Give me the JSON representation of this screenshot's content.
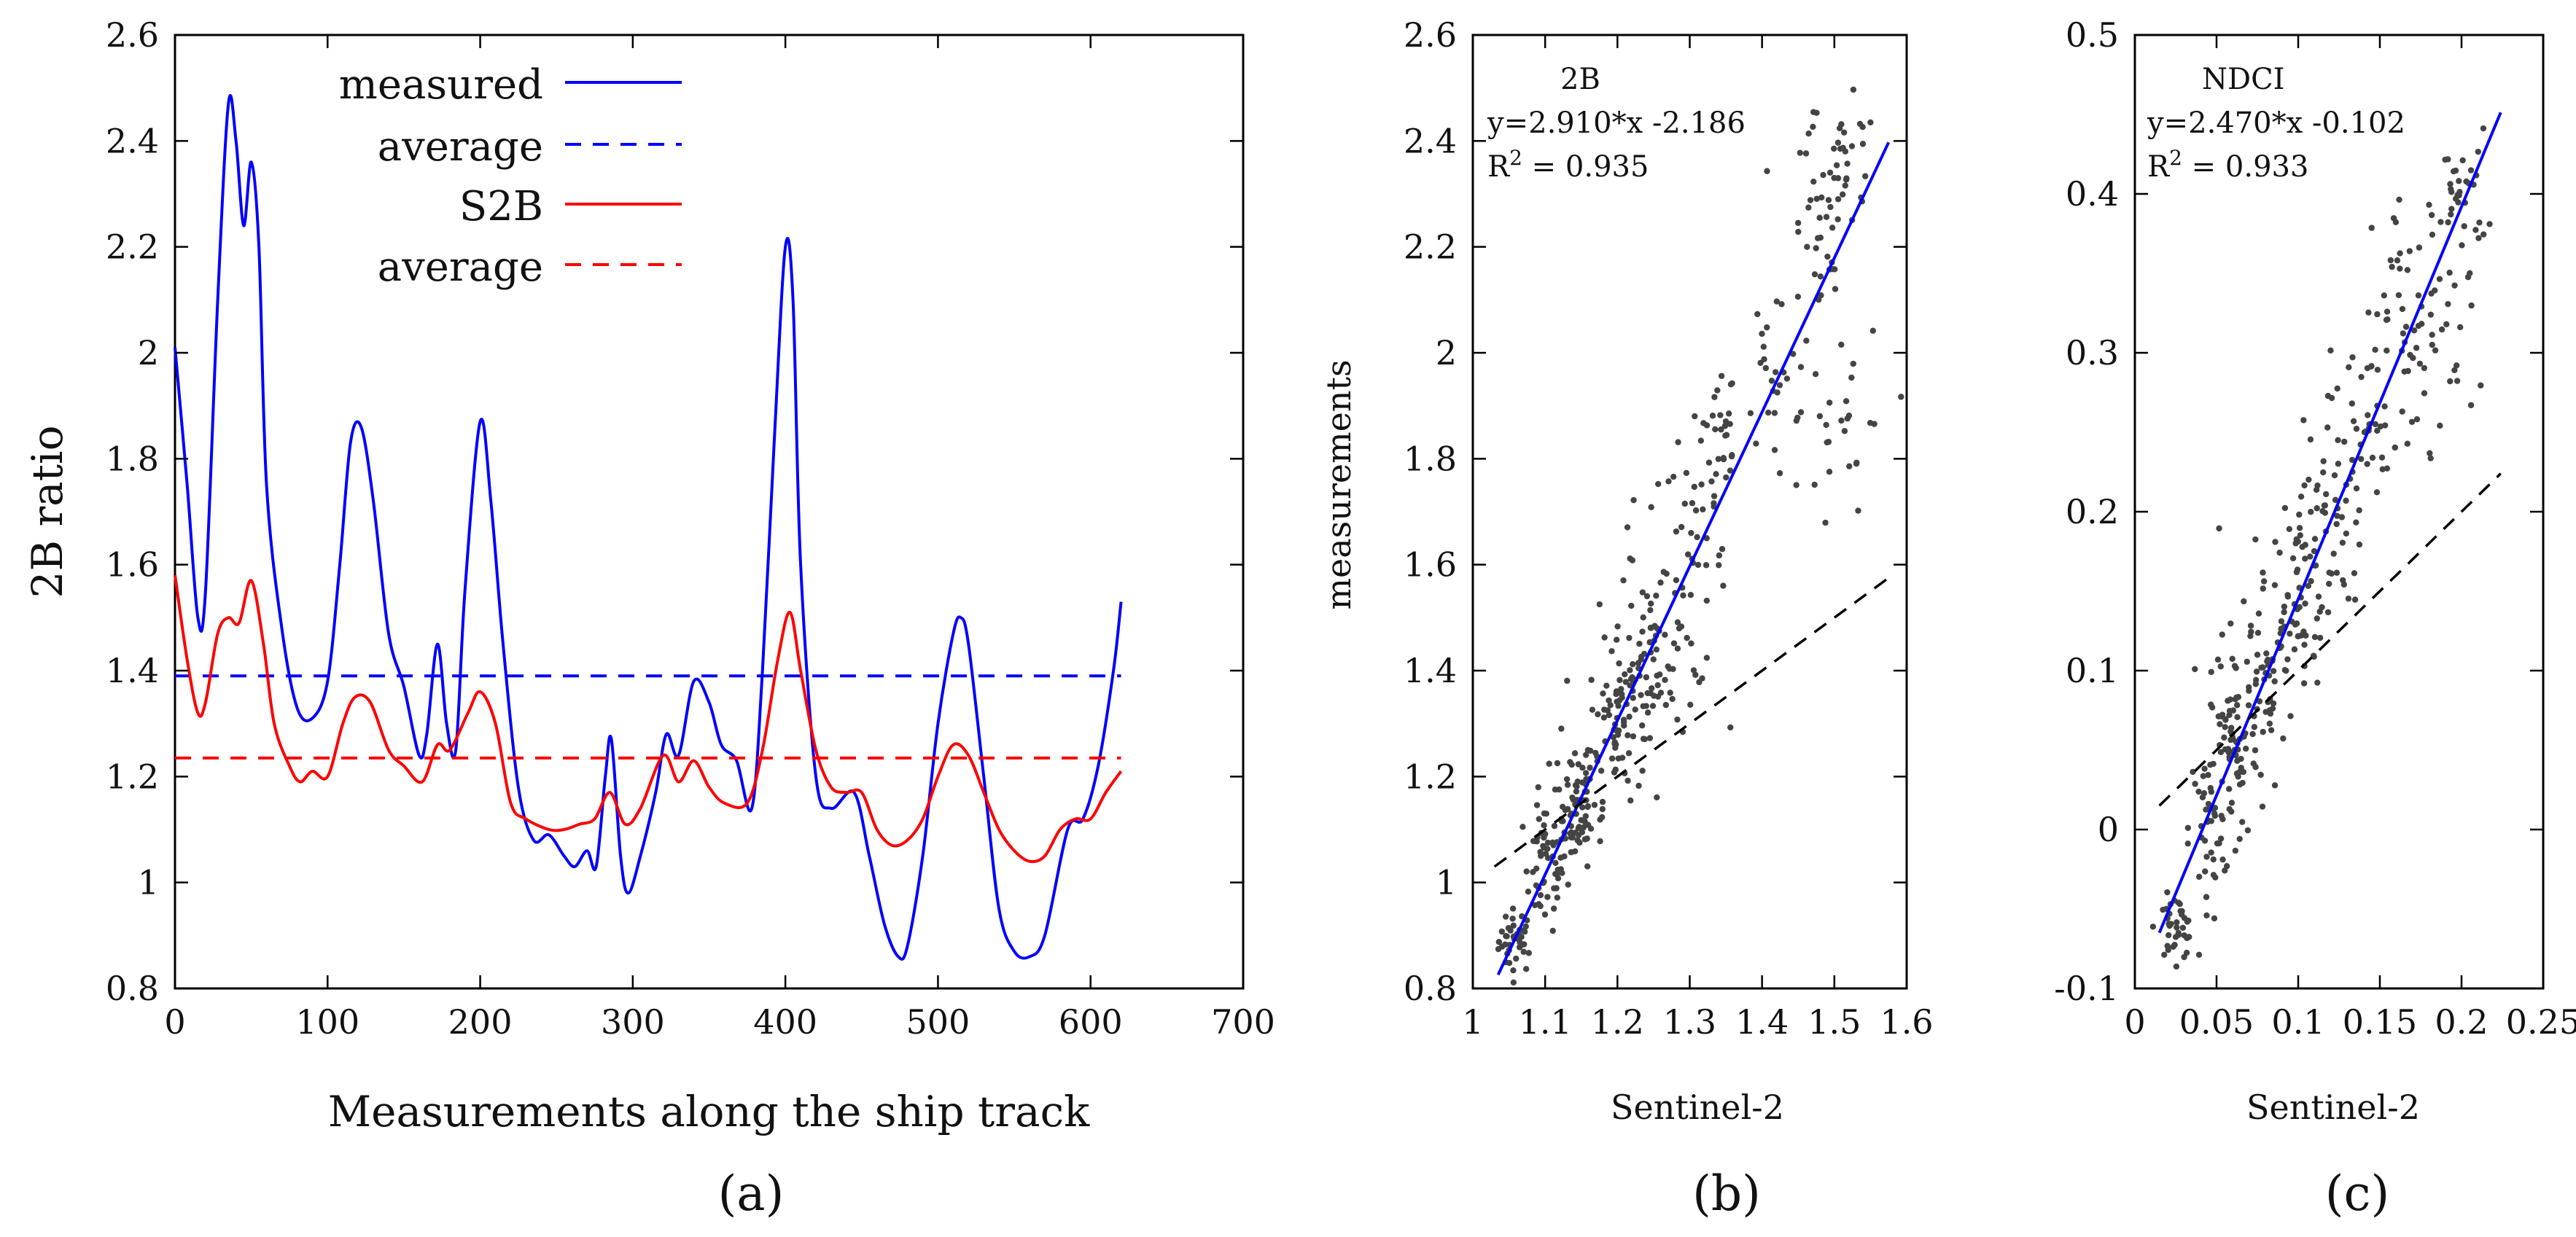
{
  "chart_data": [
    {
      "type": "line",
      "panel": "a",
      "panel_label": "(a)",
      "xlabel": "Measurements along the ship track",
      "ylabel": "2B ratio",
      "xlim": [
        0,
        700
      ],
      "ylim": [
        0.8,
        2.6
      ],
      "x_ticks": [
        0,
        100,
        200,
        300,
        400,
        500,
        600,
        700
      ],
      "y_ticks": [
        0.8,
        1,
        1.2,
        1.4,
        1.6,
        1.8,
        2,
        2.2,
        2.4,
        2.6
      ],
      "legend_position": "top-center",
      "series": [
        {
          "name": "measured",
          "color": "#0000ff",
          "style": "solid",
          "points": [
            [
              0,
              2.01
            ],
            [
              8,
              1.75
            ],
            [
              15,
              1.5
            ],
            [
              20,
              1.55
            ],
            [
              28,
              2.1
            ],
            [
              35,
              2.47
            ],
            [
              40,
              2.4
            ],
            [
              45,
              2.24
            ],
            [
              50,
              2.36
            ],
            [
              55,
              2.2
            ],
            [
              60,
              1.75
            ],
            [
              70,
              1.48
            ],
            [
              80,
              1.33
            ],
            [
              90,
              1.31
            ],
            [
              100,
              1.38
            ],
            [
              108,
              1.6
            ],
            [
              115,
              1.83
            ],
            [
              122,
              1.86
            ],
            [
              130,
              1.72
            ],
            [
              140,
              1.47
            ],
            [
              150,
              1.37
            ],
            [
              160,
              1.24
            ],
            [
              165,
              1.28
            ],
            [
              172,
              1.45
            ],
            [
              178,
              1.3
            ],
            [
              184,
              1.25
            ],
            [
              190,
              1.55
            ],
            [
              200,
              1.87
            ],
            [
              207,
              1.72
            ],
            [
              215,
              1.45
            ],
            [
              225,
              1.18
            ],
            [
              235,
              1.08
            ],
            [
              245,
              1.09
            ],
            [
              255,
              1.05
            ],
            [
              262,
              1.03
            ],
            [
              270,
              1.06
            ],
            [
              276,
              1.03
            ],
            [
              282,
              1.2
            ],
            [
              286,
              1.27
            ],
            [
              292,
              1.05
            ],
            [
              297,
              0.98
            ],
            [
              305,
              1.05
            ],
            [
              315,
              1.17
            ],
            [
              322,
              1.28
            ],
            [
              330,
              1.24
            ],
            [
              340,
              1.38
            ],
            [
              350,
              1.34
            ],
            [
              358,
              1.26
            ],
            [
              368,
              1.23
            ],
            [
              378,
              1.14
            ],
            [
              385,
              1.4
            ],
            [
              393,
              1.85
            ],
            [
              400,
              2.2
            ],
            [
              405,
              2.1
            ],
            [
              410,
              1.6
            ],
            [
              420,
              1.2
            ],
            [
              430,
              1.14
            ],
            [
              445,
              1.17
            ],
            [
              455,
              1.05
            ],
            [
              465,
              0.92
            ],
            [
              474,
              0.86
            ],
            [
              480,
              0.88
            ],
            [
              490,
              1.05
            ],
            [
              500,
              1.3
            ],
            [
              510,
              1.47
            ],
            [
              515,
              1.5
            ],
            [
              520,
              1.45
            ],
            [
              530,
              1.2
            ],
            [
              540,
              0.95
            ],
            [
              550,
              0.87
            ],
            [
              560,
              0.86
            ],
            [
              570,
              0.9
            ],
            [
              585,
              1.1
            ],
            [
              595,
              1.12
            ],
            [
              605,
              1.22
            ],
            [
              615,
              1.4
            ],
            [
              620,
              1.53
            ]
          ]
        },
        {
          "name": "average",
          "color": "#0000ff",
          "style": "dashed",
          "points": [
            [
              0,
              1.39
            ],
            [
              620,
              1.39
            ]
          ]
        },
        {
          "name": "S2B",
          "color": "#ff0000",
          "style": "solid",
          "points": [
            [
              0,
              1.58
            ],
            [
              8,
              1.42
            ],
            [
              15,
              1.32
            ],
            [
              20,
              1.34
            ],
            [
              28,
              1.47
            ],
            [
              35,
              1.5
            ],
            [
              42,
              1.49
            ],
            [
              50,
              1.57
            ],
            [
              58,
              1.45
            ],
            [
              65,
              1.3
            ],
            [
              75,
              1.22
            ],
            [
              82,
              1.19
            ],
            [
              90,
              1.21
            ],
            [
              100,
              1.2
            ],
            [
              110,
              1.3
            ],
            [
              118,
              1.35
            ],
            [
              128,
              1.34
            ],
            [
              140,
              1.25
            ],
            [
              150,
              1.22
            ],
            [
              162,
              1.19
            ],
            [
              172,
              1.26
            ],
            [
              180,
              1.25
            ],
            [
              192,
              1.32
            ],
            [
              200,
              1.36
            ],
            [
              210,
              1.3
            ],
            [
              220,
              1.15
            ],
            [
              230,
              1.12
            ],
            [
              245,
              1.1
            ],
            [
              255,
              1.1
            ],
            [
              265,
              1.11
            ],
            [
              275,
              1.12
            ],
            [
              285,
              1.17
            ],
            [
              295,
              1.11
            ],
            [
              305,
              1.14
            ],
            [
              320,
              1.24
            ],
            [
              330,
              1.19
            ],
            [
              340,
              1.23
            ],
            [
              350,
              1.18
            ],
            [
              360,
              1.15
            ],
            [
              375,
              1.15
            ],
            [
              385,
              1.25
            ],
            [
              395,
              1.42
            ],
            [
              403,
              1.51
            ],
            [
              410,
              1.4
            ],
            [
              420,
              1.25
            ],
            [
              430,
              1.18
            ],
            [
              440,
              1.17
            ],
            [
              450,
              1.17
            ],
            [
              460,
              1.1
            ],
            [
              470,
              1.07
            ],
            [
              480,
              1.08
            ],
            [
              490,
              1.12
            ],
            [
              500,
              1.2
            ],
            [
              510,
              1.26
            ],
            [
              520,
              1.24
            ],
            [
              530,
              1.17
            ],
            [
              540,
              1.1
            ],
            [
              550,
              1.06
            ],
            [
              560,
              1.04
            ],
            [
              570,
              1.05
            ],
            [
              580,
              1.1
            ],
            [
              590,
              1.12
            ],
            [
              600,
              1.12
            ],
            [
              610,
              1.17
            ],
            [
              620,
              1.21
            ]
          ]
        },
        {
          "name": "average",
          "color": "#ff0000",
          "style": "dashed",
          "points": [
            [
              0,
              1.235
            ],
            [
              620,
              1.235
            ]
          ]
        }
      ]
    },
    {
      "type": "scatter",
      "panel": "b",
      "panel_label": "(b)",
      "title": "2B",
      "annotation_eq": "y=2.910*x -2.186",
      "annotation_r2_prefix": "R",
      "annotation_r2_exp": "2",
      "annotation_r2_value": " = 0.935",
      "xlabel": "Sentinel-2",
      "ylabel": "measurements",
      "xlim": [
        1,
        1.6
      ],
      "ylim": [
        0.8,
        2.6
      ],
      "x_ticks": [
        1,
        1.1,
        1.2,
        1.3,
        1.4,
        1.5,
        1.6
      ],
      "y_ticks": [
        0.8,
        1,
        1.2,
        1.4,
        1.6,
        1.8,
        2,
        2.2,
        2.4,
        2.6
      ],
      "fit": {
        "slope": 2.91,
        "intercept": -2.186,
        "x_range": [
          1.035,
          1.575
        ],
        "color": "#0000ff"
      },
      "one_to_one": {
        "x_range": [
          1.03,
          1.575
        ],
        "color": "#000000",
        "style": "dashed"
      },
      "point_clusters": [
        {
          "cx": 1.06,
          "cy": 0.89,
          "sx": 0.012,
          "sy": 0.03,
          "n": 40
        },
        {
          "cx": 1.1,
          "cy": 1.03,
          "sx": 0.015,
          "sy": 0.06,
          "n": 55
        },
        {
          "cx": 1.14,
          "cy": 1.16,
          "sx": 0.015,
          "sy": 0.06,
          "n": 55
        },
        {
          "cx": 1.2,
          "cy": 1.3,
          "sx": 0.02,
          "sy": 0.07,
          "n": 70
        },
        {
          "cx": 1.25,
          "cy": 1.42,
          "sx": 0.02,
          "sy": 0.07,
          "n": 55
        },
        {
          "cx": 1.3,
          "cy": 1.6,
          "sx": 0.025,
          "sy": 0.12,
          "n": 45
        },
        {
          "cx": 1.34,
          "cy": 1.8,
          "sx": 0.015,
          "sy": 0.08,
          "n": 30
        },
        {
          "cx": 1.42,
          "cy": 1.95,
          "sx": 0.03,
          "sy": 0.12,
          "n": 30
        },
        {
          "cx": 1.48,
          "cy": 2.2,
          "sx": 0.02,
          "sy": 0.12,
          "n": 40
        },
        {
          "cx": 1.52,
          "cy": 2.35,
          "sx": 0.02,
          "sy": 0.06,
          "n": 25
        },
        {
          "cx": 1.52,
          "cy": 1.85,
          "sx": 0.03,
          "sy": 0.1,
          "n": 25
        },
        {
          "cx": 1.22,
          "cy": 1.55,
          "sx": 0.02,
          "sy": 0.12,
          "n": 20
        },
        {
          "cx": 1.15,
          "cy": 1.1,
          "sx": 0.02,
          "sy": 0.04,
          "n": 25
        }
      ]
    },
    {
      "type": "scatter",
      "panel": "c",
      "panel_label": "(c)",
      "title": "NDCI",
      "annotation_eq": "y=2.470*x -0.102",
      "annotation_r2_prefix": "R",
      "annotation_r2_exp": "2",
      "annotation_r2_value": " = 0.933",
      "xlabel": "Sentinel-2",
      "ylabel": "",
      "xlim": [
        0,
        0.25
      ],
      "ylim": [
        -0.1,
        0.5
      ],
      "x_ticks": [
        0,
        0.05,
        0.1,
        0.15,
        0.2,
        0.25
      ],
      "y_ticks": [
        -0.1,
        0,
        0.1,
        0.2,
        0.3,
        0.4,
        0.5
      ],
      "fit": {
        "slope": 2.47,
        "intercept": -0.102,
        "x_range": [
          0.015,
          0.224
        ],
        "color": "#0000ff"
      },
      "one_to_one": {
        "x_range": [
          0.015,
          0.224
        ],
        "color": "#000000",
        "style": "dashed"
      },
      "point_clusters": [
        {
          "cx": 0.025,
          "cy": -0.062,
          "sx": 0.006,
          "sy": 0.01,
          "n": 40
        },
        {
          "cx": 0.045,
          "cy": 0.0,
          "sx": 0.006,
          "sy": 0.025,
          "n": 45
        },
        {
          "cx": 0.06,
          "cy": 0.05,
          "sx": 0.008,
          "sy": 0.025,
          "n": 50
        },
        {
          "cx": 0.08,
          "cy": 0.1,
          "sx": 0.01,
          "sy": 0.03,
          "n": 60
        },
        {
          "cx": 0.1,
          "cy": 0.15,
          "sx": 0.01,
          "sy": 0.03,
          "n": 60
        },
        {
          "cx": 0.12,
          "cy": 0.2,
          "sx": 0.01,
          "sy": 0.03,
          "n": 45
        },
        {
          "cx": 0.14,
          "cy": 0.26,
          "sx": 0.01,
          "sy": 0.03,
          "n": 40
        },
        {
          "cx": 0.17,
          "cy": 0.32,
          "sx": 0.012,
          "sy": 0.04,
          "n": 40
        },
        {
          "cx": 0.2,
          "cy": 0.4,
          "sx": 0.008,
          "sy": 0.02,
          "n": 35
        },
        {
          "cx": 0.19,
          "cy": 0.3,
          "sx": 0.015,
          "sy": 0.03,
          "n": 25
        },
        {
          "cx": 0.06,
          "cy": 0.08,
          "sx": 0.012,
          "sy": 0.05,
          "n": 25
        }
      ]
    }
  ]
}
